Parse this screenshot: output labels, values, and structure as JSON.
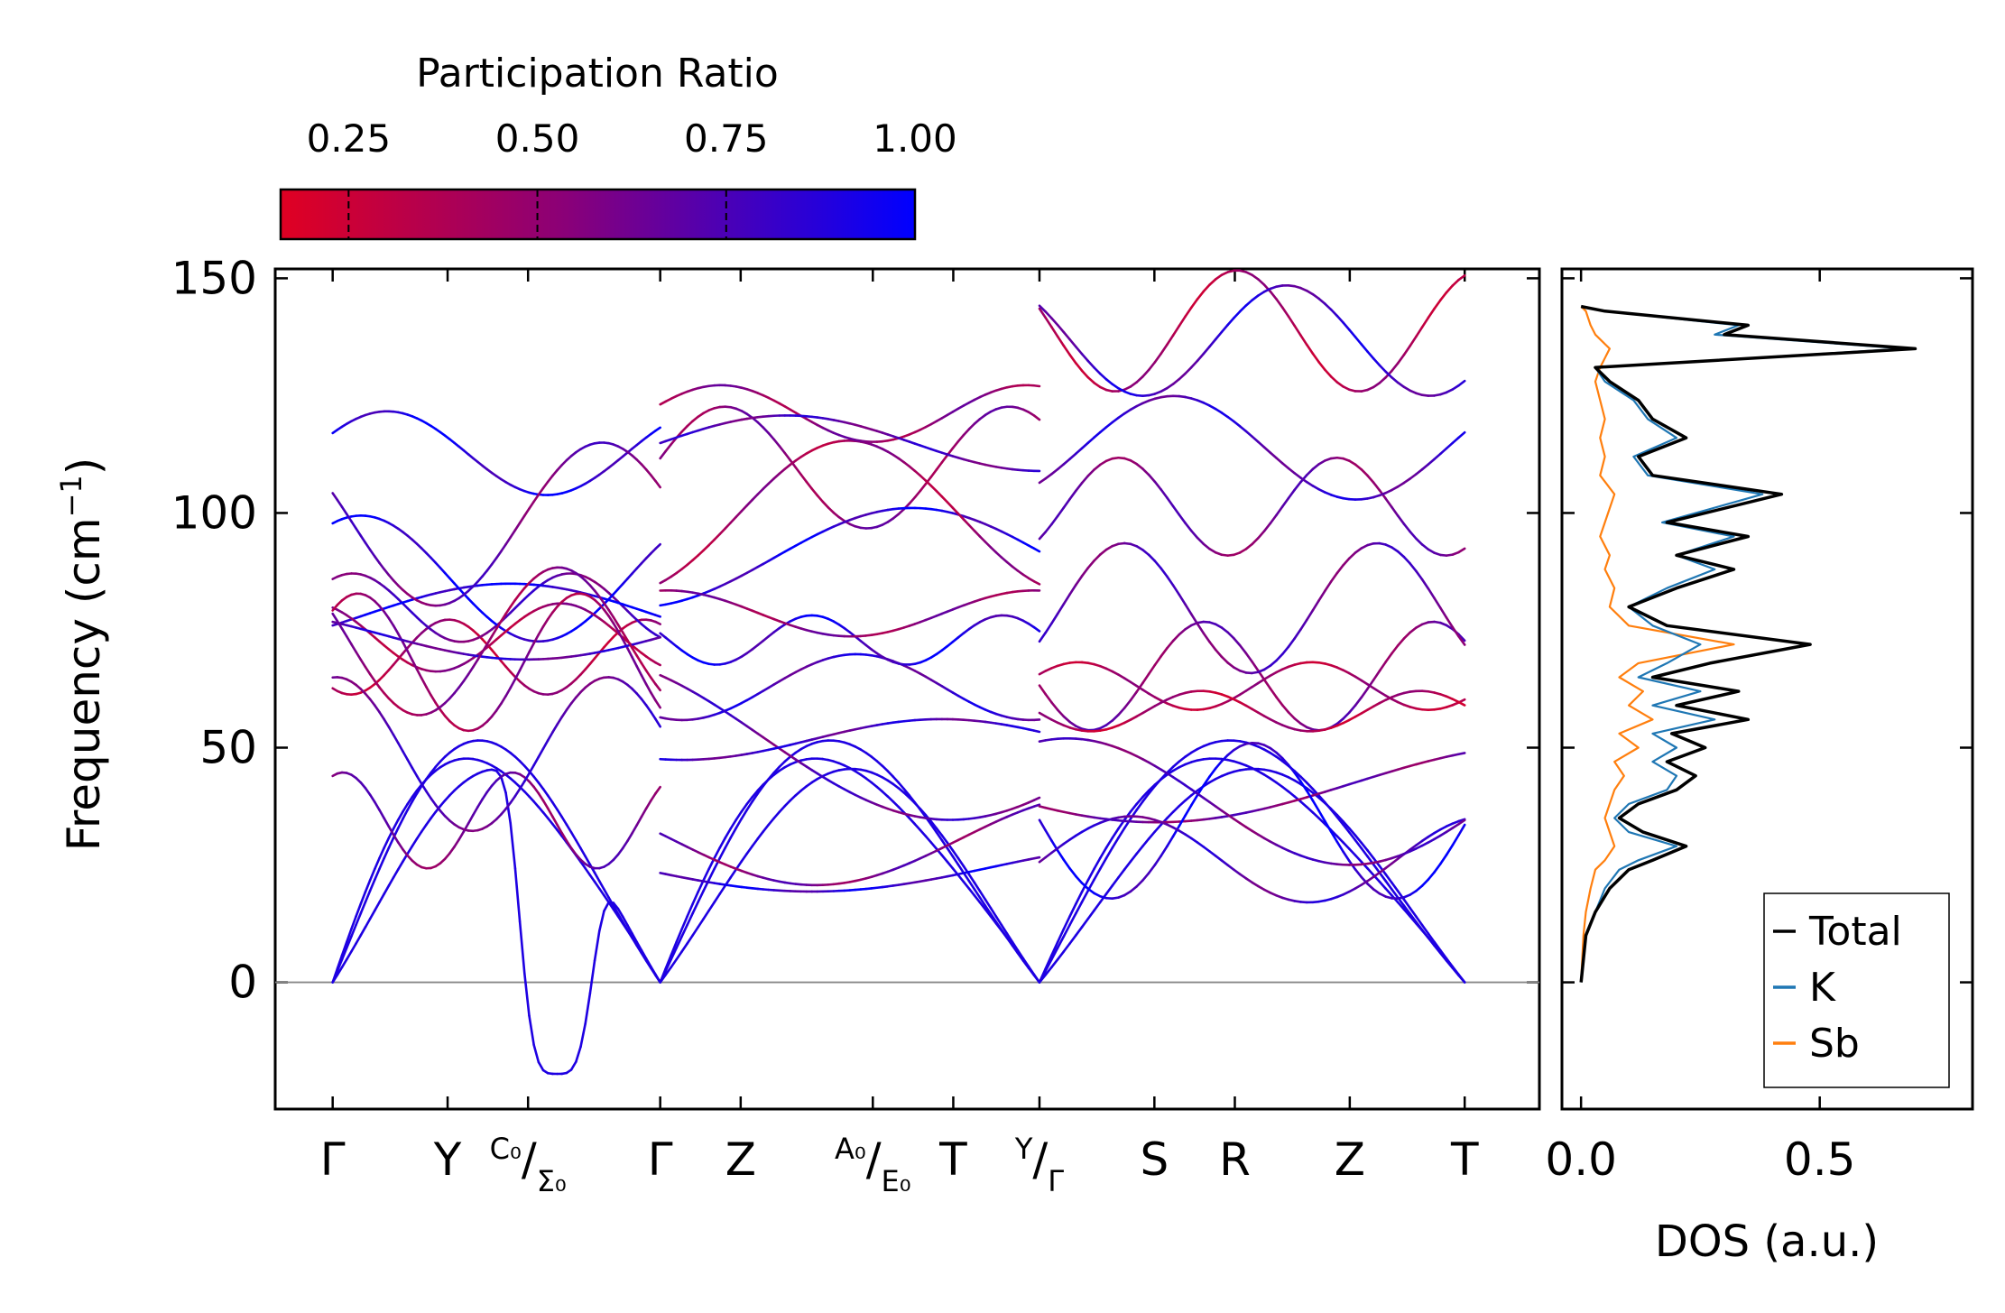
{
  "chart_data": [
    {
      "type": "line",
      "name": "phonon-band-structure",
      "ylabel_main": "Frequency (cm",
      "ylabel_sup": "−1",
      "ylabel_close": ")",
      "ylim": [
        -27,
        152
      ],
      "yticks": [
        "150",
        "100",
        "50",
        "0"
      ],
      "ytick_values": [
        150,
        100,
        50,
        0
      ],
      "high_symmetry_points": [
        {
          "main": "Γ",
          "path_pos": 0
        },
        {
          "main": "Y",
          "path_pos": 1
        },
        {
          "sup": "C₀",
          "sep": "/",
          "sub": "Σ₀",
          "path_pos": 1.7
        },
        {
          "main": "Γ",
          "path_pos": 2.85
        },
        {
          "main": "Z",
          "path_pos": 3.55
        },
        {
          "sup": "A₀",
          "sep": "/",
          "sub": "E₀",
          "path_pos": 4.7
        },
        {
          "main": "T",
          "path_pos": 5.4
        },
        {
          "sup": "Y",
          "sep": "/",
          "sub": "Γ",
          "path_pos": 6.15
        },
        {
          "main": "S",
          "path_pos": 7.15
        },
        {
          "main": "R",
          "path_pos": 7.85
        },
        {
          "main": "Z",
          "path_pos": 8.85
        },
        {
          "main": "T",
          "path_pos": 9.85
        }
      ],
      "x_range": [
        -0.5,
        10.5
      ],
      "segments": [
        [
          0,
          2.85
        ],
        [
          2.85,
          6.15
        ],
        [
          6.15,
          9.85
        ]
      ],
      "segment_mode_count": [
        15,
        15,
        15
      ],
      "imaginary_mode": {
        "dip_min": -19.5,
        "center": 1.95,
        "width": 0.35
      },
      "colorbar_label": "Participation Ratio",
      "colorbar_ticks": [
        "0.25",
        "0.50",
        "0.75",
        "1.00"
      ],
      "colorbar_tick_values": [
        0.25,
        0.5,
        0.75,
        1.0
      ],
      "colorbar_range": [
        0.16,
        1.0
      ],
      "colormap": [
        "#e00022",
        "#8a0078",
        "#0000ff"
      ]
    },
    {
      "type": "line",
      "name": "density-of-states",
      "xlabel": "DOS (a.u.)",
      "xlim": [
        -0.04,
        0.82
      ],
      "xticks": [
        "0.0",
        "0.5"
      ],
      "xtick_values": [
        0.0,
        0.5
      ],
      "legend_position": "lower-right",
      "series": [
        {
          "name": "Total",
          "color": "#000000",
          "values": [
            [
              0,
              0
            ],
            [
              0.01,
              10
            ],
            [
              0.03,
              15
            ],
            [
              0.06,
              20
            ],
            [
              0.1,
              24
            ],
            [
              0.15,
              26
            ],
            [
              0.22,
              29
            ],
            [
              0.13,
              32
            ],
            [
              0.08,
              35
            ],
            [
              0.12,
              38
            ],
            [
              0.2,
              41
            ],
            [
              0.24,
              44
            ],
            [
              0.18,
              47
            ],
            [
              0.26,
              50
            ],
            [
              0.19,
              53
            ],
            [
              0.35,
              56
            ],
            [
              0.2,
              59
            ],
            [
              0.33,
              62
            ],
            [
              0.15,
              65
            ],
            [
              0.27,
              68
            ],
            [
              0.48,
              72
            ],
            [
              0.18,
              76
            ],
            [
              0.1,
              80
            ],
            [
              0.2,
              84
            ],
            [
              0.32,
              88
            ],
            [
              0.2,
              91
            ],
            [
              0.35,
              95
            ],
            [
              0.18,
              98
            ],
            [
              0.42,
              104
            ],
            [
              0.15,
              108
            ],
            [
              0.12,
              112
            ],
            [
              0.22,
              116
            ],
            [
              0.15,
              120
            ],
            [
              0.12,
              124
            ],
            [
              0.06,
              128
            ],
            [
              0.03,
              131
            ],
            [
              0.7,
              135
            ],
            [
              0.3,
              138
            ],
            [
              0.35,
              140
            ],
            [
              0.05,
              143
            ],
            [
              0,
              144
            ]
          ]
        },
        {
          "name": "K",
          "color": "#1f77b4",
          "values": [
            [
              0,
              0
            ],
            [
              0.01,
              10
            ],
            [
              0.03,
              15
            ],
            [
              0.05,
              20
            ],
            [
              0.08,
              24
            ],
            [
              0.12,
              26
            ],
            [
              0.2,
              29
            ],
            [
              0.1,
              32
            ],
            [
              0.07,
              35
            ],
            [
              0.1,
              38
            ],
            [
              0.18,
              41
            ],
            [
              0.2,
              44
            ],
            [
              0.15,
              47
            ],
            [
              0.2,
              50
            ],
            [
              0.15,
              53
            ],
            [
              0.28,
              56
            ],
            [
              0.15,
              59
            ],
            [
              0.25,
              62
            ],
            [
              0.12,
              65
            ],
            [
              0.18,
              68
            ],
            [
              0.25,
              72
            ],
            [
              0.15,
              76
            ],
            [
              0.1,
              80
            ],
            [
              0.18,
              84
            ],
            [
              0.28,
              88
            ],
            [
              0.2,
              91
            ],
            [
              0.32,
              95
            ],
            [
              0.17,
              98
            ],
            [
              0.38,
              104
            ],
            [
              0.14,
              108
            ],
            [
              0.11,
              112
            ],
            [
              0.2,
              116
            ],
            [
              0.14,
              120
            ],
            [
              0.11,
              124
            ],
            [
              0.05,
              128
            ],
            [
              0.03,
              131
            ],
            [
              0.68,
              135
            ],
            [
              0.28,
              138
            ],
            [
              0.33,
              140
            ],
            [
              0.05,
              143
            ],
            [
              0,
              144
            ]
          ]
        },
        {
          "name": "Sb",
          "color": "#ff7f0e",
          "values": [
            [
              0,
              0
            ],
            [
              0.005,
              10
            ],
            [
              0.01,
              15
            ],
            [
              0.02,
              20
            ],
            [
              0.03,
              24
            ],
            [
              0.05,
              26
            ],
            [
              0.07,
              29
            ],
            [
              0.06,
              32
            ],
            [
              0.05,
              35
            ],
            [
              0.06,
              38
            ],
            [
              0.07,
              41
            ],
            [
              0.09,
              44
            ],
            [
              0.07,
              47
            ],
            [
              0.12,
              50
            ],
            [
              0.08,
              53
            ],
            [
              0.15,
              56
            ],
            [
              0.1,
              59
            ],
            [
              0.13,
              62
            ],
            [
              0.08,
              65
            ],
            [
              0.12,
              68
            ],
            [
              0.32,
              72
            ],
            [
              0.1,
              76
            ],
            [
              0.06,
              80
            ],
            [
              0.07,
              84
            ],
            [
              0.05,
              88
            ],
            [
              0.06,
              91
            ],
            [
              0.04,
              95
            ],
            [
              0.05,
              98
            ],
            [
              0.07,
              104
            ],
            [
              0.04,
              108
            ],
            [
              0.05,
              112
            ],
            [
              0.04,
              116
            ],
            [
              0.05,
              120
            ],
            [
              0.04,
              124
            ],
            [
              0.03,
              128
            ],
            [
              0.04,
              131
            ],
            [
              0.06,
              135
            ],
            [
              0.03,
              138
            ],
            [
              0.02,
              140
            ],
            [
              0.01,
              143
            ],
            [
              0,
              144
            ]
          ]
        }
      ]
    }
  ]
}
